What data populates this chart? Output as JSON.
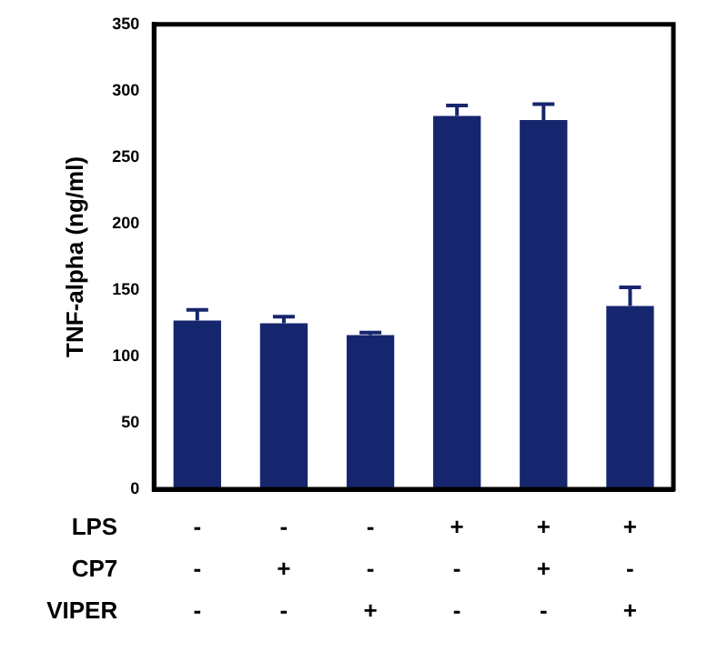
{
  "chart_data": {
    "type": "bar",
    "ylabel": "TNF-alpha (ng/ml)",
    "categories": [
      "-\n-\n-",
      "-\n+\n-",
      "-\n-\n+",
      "+\n-\n-",
      "+\n+\n-",
      "+\n-\n+"
    ],
    "values": [
      127,
      125,
      116,
      281,
      278,
      138
    ],
    "errors": [
      [
        127,
        135
      ],
      [
        125,
        130
      ],
      [
        116,
        118
      ],
      [
        281,
        289
      ],
      [
        278,
        290
      ],
      [
        138,
        152
      ]
    ],
    "color": "#16266e",
    "ylim": [
      0,
      350
    ],
    "yticks": [
      0,
      50,
      100,
      150,
      200,
      250,
      300,
      350
    ],
    "grid": false,
    "legend": false,
    "annotations": [
      "LPS",
      "CP7",
      "VIPER"
    ]
  }
}
